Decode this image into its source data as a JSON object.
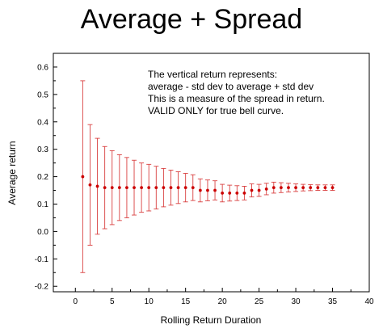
{
  "slide": {
    "title": "Average + Spread"
  },
  "chart_data": {
    "type": "scatter",
    "title": "",
    "xlabel": "Rolling Return Duration",
    "ylabel": "Average return",
    "xlim": [
      -3,
      40
    ],
    "ylim": [
      -0.22,
      0.65
    ],
    "xticks": [
      0,
      5,
      10,
      15,
      20,
      25,
      30,
      35,
      40
    ],
    "xtick_labels": [
      "0",
      "5",
      "10",
      "15",
      "20",
      "25",
      "30",
      "35",
      "40"
    ],
    "yticks": [
      -0.2,
      -0.1,
      0.0,
      0.1,
      0.2,
      0.3,
      0.4,
      0.5,
      0.6
    ],
    "ytick_labels": [
      "-0.2",
      "-0.1",
      "0.0",
      "0.1",
      "0.2",
      "0.3",
      "0.4",
      "0.5",
      "0.6"
    ],
    "grid": false,
    "marker_color": "#cc0000",
    "errorbar_color": "#d94040",
    "annotation_lines": [
      "The vertical return represents:",
      "average - std dev to average + std dev",
      "This is a measure of the spread in return.",
      "VALID ONLY for true bell curve."
    ],
    "series": [
      {
        "x": [
          1,
          2,
          3,
          4,
          5,
          6,
          7,
          8,
          9,
          10,
          11,
          12,
          13,
          14,
          15,
          16,
          17,
          18,
          19,
          20,
          21,
          22,
          23,
          24,
          25,
          26,
          27,
          28,
          29,
          30,
          31,
          32,
          33,
          34,
          35
        ],
        "y": [
          0.2,
          0.17,
          0.165,
          0.16,
          0.16,
          0.16,
          0.16,
          0.16,
          0.16,
          0.16,
          0.16,
          0.16,
          0.16,
          0.16,
          0.16,
          0.16,
          0.15,
          0.15,
          0.15,
          0.14,
          0.14,
          0.14,
          0.14,
          0.15,
          0.15,
          0.155,
          0.16,
          0.16,
          0.16,
          0.16,
          0.16,
          0.16,
          0.16,
          0.16,
          0.16
        ],
        "error": [
          0.35,
          0.22,
          0.175,
          0.15,
          0.135,
          0.12,
          0.11,
          0.1,
          0.09,
          0.085,
          0.078,
          0.07,
          0.064,
          0.058,
          0.052,
          0.047,
          0.042,
          0.038,
          0.035,
          0.032,
          0.029,
          0.027,
          0.025,
          0.024,
          0.022,
          0.021,
          0.02,
          0.018,
          0.016,
          0.014,
          0.012,
          0.011,
          0.01,
          0.01,
          0.01
        ]
      }
    ]
  }
}
